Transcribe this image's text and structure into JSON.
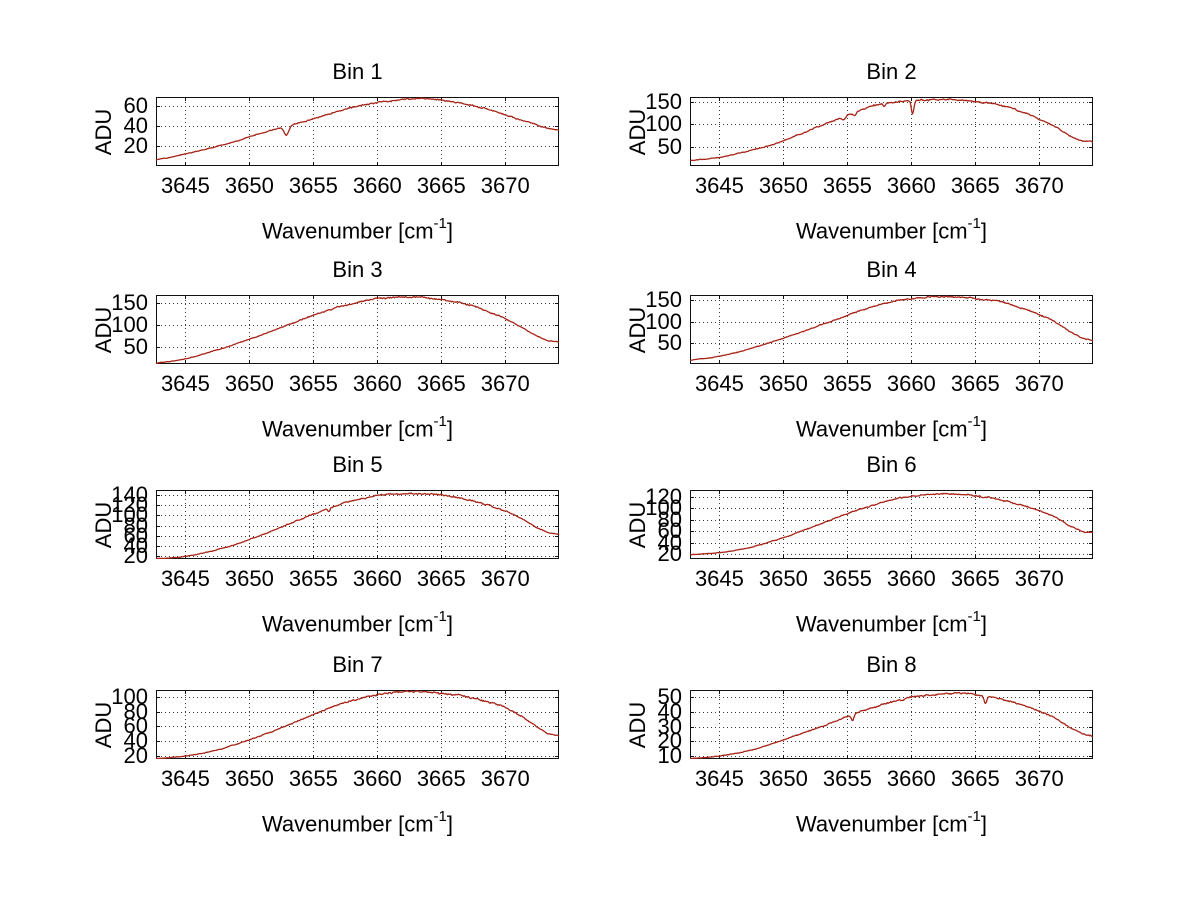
{
  "figure": {
    "background": "#ffffff",
    "line_color": "#a62418",
    "grid_color": "#3a3a3a",
    "axis_color": "#111111",
    "text_color": "#000000"
  },
  "axes_common": {
    "ylabel": "ADU",
    "xlabel_pre": "Wavenumber [cm",
    "xlabel_sup": "-1",
    "xlabel_post": "]",
    "xlim": [
      3642.7,
      3674.2
    ],
    "xticks": [
      3645,
      3650,
      3655,
      3660,
      3665,
      3670
    ],
    "grid": "dotted",
    "x_anchors": [
      3643,
      3645,
      3647,
      3649,
      3651,
      3653,
      3655,
      3657,
      3659,
      3661,
      3663,
      3665,
      3667,
      3669,
      3671,
      3673,
      3674
    ]
  },
  "chart_data": [
    {
      "type": "line",
      "title": "Bin 1",
      "ylabel": "ADU",
      "ylim": [
        0,
        69
      ],
      "yticks": [
        20,
        40,
        60
      ],
      "y_anchors": [
        7,
        12,
        18,
        25,
        33,
        40,
        47,
        55,
        61,
        65,
        67,
        66,
        62,
        55,
        47,
        39,
        36
      ],
      "spikes": [
        {
          "x": 3652.9,
          "depth": 9,
          "width": 0.18
        }
      ],
      "noise_amp": 0.9
    },
    {
      "type": "line",
      "title": "Bin 2",
      "ylabel": "ADU",
      "ylim": [
        9,
        160
      ],
      "yticks": [
        50,
        100,
        150
      ],
      "y_anchors": [
        22,
        28,
        40,
        55,
        75,
        98,
        120,
        140,
        150,
        153,
        154,
        150,
        141,
        124,
        98,
        68,
        62
      ],
      "spikes": [
        {
          "x": 3660.1,
          "depth": 31,
          "width": 0.1
        },
        {
          "x": 3654.7,
          "depth": 8,
          "width": 0.12
        },
        {
          "x": 3655.6,
          "depth": 6,
          "width": 0.1
        },
        {
          "x": 3657.9,
          "depth": 5,
          "width": 0.1
        }
      ],
      "noise_amp": 2.2
    },
    {
      "type": "line",
      "title": "Bin 3",
      "ylabel": "ADU",
      "ylim": [
        10,
        169
      ],
      "yticks": [
        50,
        100,
        150
      ],
      "y_anchors": [
        13,
        22,
        38,
        57,
        78,
        100,
        122,
        142,
        156,
        163,
        164,
        158,
        148,
        127,
        100,
        68,
        62
      ],
      "spikes": [],
      "noise_amp": 2.2
    },
    {
      "type": "line",
      "title": "Bin 4",
      "ylabel": "ADU",
      "ylim": [
        2,
        162
      ],
      "yticks": [
        50,
        100,
        150
      ],
      "y_anchors": [
        12,
        20,
        34,
        52,
        72,
        93,
        115,
        135,
        150,
        156,
        158,
        154,
        146,
        128,
        103,
        68,
        58
      ],
      "spikes": [],
      "noise_amp": 2.0
    },
    {
      "type": "line",
      "title": "Bin 5",
      "ylabel": "ADU",
      "ylim": [
        15,
        149
      ],
      "yticks": [
        20,
        40,
        60,
        80,
        100,
        120,
        140
      ],
      "y_anchors": [
        16,
        20,
        30,
        44,
        62,
        82,
        102,
        120,
        133,
        140,
        142,
        139,
        131,
        117,
        97,
        70,
        64
      ],
      "spikes": [
        {
          "x": 3656.2,
          "depth": 6,
          "width": 0.1
        }
      ],
      "noise_amp": 1.8
    },
    {
      "type": "line",
      "title": "Bin 6",
      "ylabel": "ADU",
      "ylim": [
        12,
        132
      ],
      "yticks": [
        20,
        40,
        60,
        80,
        100,
        120
      ],
      "y_anchors": [
        20,
        23,
        30,
        42,
        57,
        74,
        91,
        106,
        117,
        123,
        125,
        122,
        115,
        103,
        87,
        64,
        58
      ],
      "spikes": [],
      "noise_amp": 1.6
    },
    {
      "type": "line",
      "title": "Bin 7",
      "ylabel": "ADU",
      "ylim": [
        16,
        109
      ],
      "yticks": [
        20,
        40,
        60,
        80,
        100
      ],
      "y_anchors": [
        17,
        20,
        26,
        36,
        48,
        62,
        76,
        89,
        99,
        105,
        107,
        105,
        100,
        91,
        77,
        54,
        48
      ],
      "spikes": [],
      "noise_amp": 1.5
    },
    {
      "type": "line",
      "title": "Bin 8",
      "ylabel": "ADU",
      "ylim": [
        8,
        55
      ],
      "yticks": [
        10,
        20,
        30,
        40,
        50
      ],
      "y_anchors": [
        8.5,
        10,
        13,
        18,
        24,
        30,
        37,
        43,
        48,
        51,
        52.5,
        52,
        49,
        44,
        37,
        27,
        24
      ],
      "spikes": [
        {
          "x": 3655.4,
          "depth": 4,
          "width": 0.1
        },
        {
          "x": 3665.8,
          "depth": 5,
          "width": 0.1
        }
      ],
      "noise_amp": 0.7
    }
  ]
}
